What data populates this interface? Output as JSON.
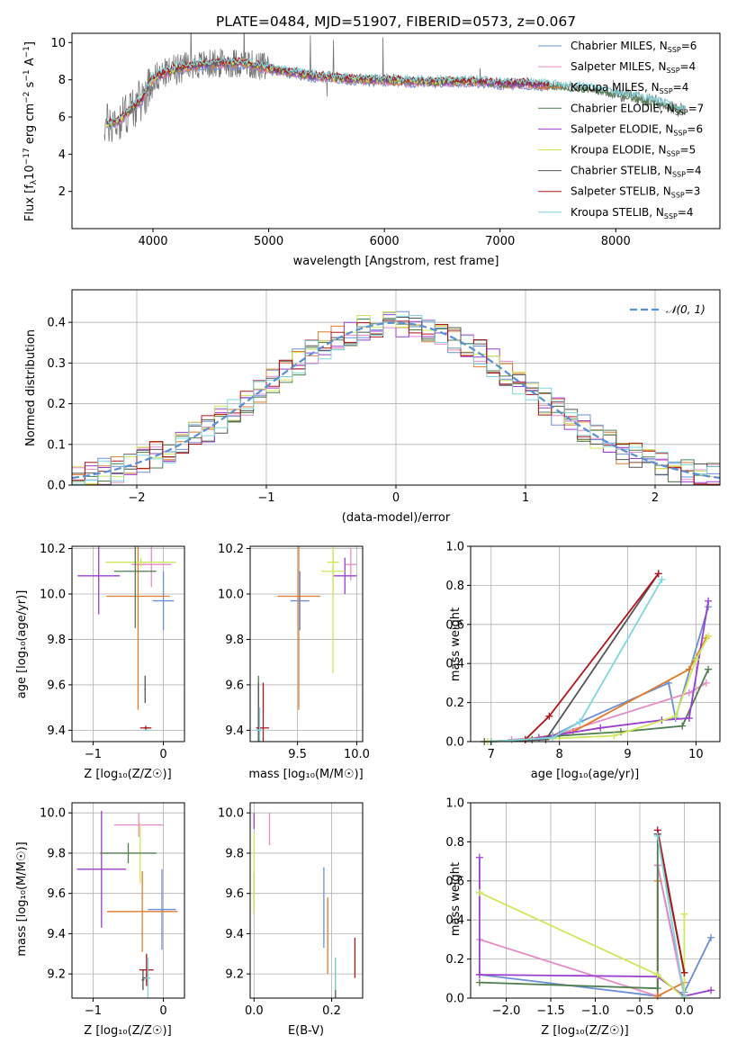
{
  "colors": {
    "series": [
      "#6a8fd8",
      "#e58cc8",
      "#e07b2a",
      "#4e7d4e",
      "#9b3fcf",
      "#cde85a",
      "#555555",
      "#b0161c",
      "#7fd6dc"
    ],
    "gaussian": "#5b8fd6"
  },
  "chart_data": [
    {
      "id": "spectrum",
      "type": "line",
      "title": "PLATE=0484, MJD=51907, FIBERID=0573, z=0.067",
      "xlabel": "wavelength [Angstrom, rest frame]",
      "ylabel": "Flux [f$_\\lambda$10$^{-17}$ erg cm$^{-2}$ s$^{-1}$ A$^{-1}$]",
      "ylabel_parts": [
        "Flux [f",
        "λ",
        "10",
        "−17",
        " erg cm",
        "−2",
        " s",
        "−1",
        " A",
        "−1",
        "]"
      ],
      "xlim": [
        3300,
        8900
      ],
      "ylim": [
        0,
        10.5
      ],
      "xticks": [
        4000,
        5000,
        6000,
        7000,
        8000
      ],
      "yticks": [
        2,
        4,
        6,
        8,
        10
      ],
      "legend_position": "upper right",
      "legend": [
        {
          "base": "Chabrier MILES, N",
          "sub": "SSP",
          "tail": "=6"
        },
        {
          "base": "Salpeter MILES, N",
          "sub": "SSP",
          "tail": "=4"
        },
        {
          "base": "Kroupa MILES, N",
          "sub": "SSP",
          "tail": "=4"
        },
        {
          "base": "Chabrier ELODIE, N",
          "sub": "SSP",
          "tail": "=7"
        },
        {
          "base": "Salpeter ELODIE, N",
          "sub": "SSP",
          "tail": "=6"
        },
        {
          "base": "Kroupa ELODIE, N",
          "sub": "SSP",
          "tail": "=5"
        },
        {
          "base": "Chabrier STELIB, N",
          "sub": "SSP",
          "tail": "=4"
        },
        {
          "base": "Salpeter STELIB, N",
          "sub": "SSP",
          "tail": "=3"
        },
        {
          "base": "Kroupa STELIB, N",
          "sub": "SSP",
          "tail": "=4"
        }
      ],
      "data_trend": {
        "wavelength": [
          3600,
          3700,
          3900,
          4000,
          4200,
          4400,
          4600,
          4800,
          5000,
          5200,
          5400,
          5600,
          5800,
          6000,
          6200,
          6400,
          6600,
          6800,
          7000,
          7200,
          7400,
          7600,
          7800,
          8000,
          8200,
          8400,
          8600
        ],
        "flux": [
          5.6,
          5.8,
          6.9,
          8.1,
          8.6,
          8.8,
          8.9,
          8.9,
          8.6,
          8.4,
          8.2,
          8.1,
          8.0,
          8.0,
          7.9,
          7.9,
          7.9,
          7.9,
          7.8,
          7.8,
          7.7,
          7.6,
          7.5,
          7.2,
          7.0,
          6.7,
          6.3
        ]
      }
    },
    {
      "id": "residuals",
      "type": "histogram",
      "xlabel": "(data-model)/error",
      "ylabel": "Normed distribution",
      "xlim": [
        -2.5,
        2.5
      ],
      "ylim": [
        0,
        0.48
      ],
      "xticks": [
        -2,
        -1,
        0,
        1,
        2
      ],
      "yticks": [
        0.0,
        0.1,
        0.2,
        0.3,
        0.4
      ],
      "grid": true,
      "bin_width": 0.1,
      "bin_start": -2.5,
      "legend_position": "upper right",
      "gaussian_label": "𝒩(0, 1)",
      "gaussian_mean": 0,
      "gaussian_sigma": 1
    },
    {
      "id": "age-vs-Z",
      "type": "errorbar",
      "xlabel": "Z [log₁₀(Z/Z☉)]",
      "ylabel": "age  [log₁₀(age/yr)]",
      "xlim": [
        -1.3,
        0.3
      ],
      "ylim": [
        9.35,
        10.21
      ],
      "xticks": [
        -1,
        0
      ],
      "yticks": [
        9.4,
        9.6,
        9.8,
        10.0,
        10.2
      ],
      "grid": true,
      "points": [
        {
          "x": 0.0,
          "y": 9.97,
          "xerr": 0.15,
          "yerr": 0.13
        },
        {
          "x": -0.17,
          "y": 10.13,
          "xerr": 0.28,
          "yerr": 0.1
        },
        {
          "x": -0.36,
          "y": 9.99,
          "xerr": 0.45,
          "yerr": 0.5
        },
        {
          "x": -0.25,
          "y": 9.41,
          "xerr": 0.08,
          "yerr": 0.01
        },
        {
          "x": -0.92,
          "y": 10.08,
          "xerr": 0.3,
          "yerr": 0.17
        },
        {
          "x": -0.32,
          "y": 10.14,
          "xerr": 0.5,
          "yerr": 0.02
        },
        {
          "x": -0.26,
          "y": 9.58,
          "xerr": 0.01,
          "yerr": 0.06
        },
        {
          "x": -0.24,
          "y": 9.41,
          "xerr": 0.04,
          "yerr": 0.0
        },
        {
          "x": -0.24,
          "y": 9.4,
          "xerr": 0.06,
          "yerr": 0.0
        },
        {
          "x": -0.4,
          "y": 10.1,
          "xerr": 0.3,
          "yerr": 0.25
        }
      ],
      "point_colors": [
        0,
        1,
        2,
        7,
        4,
        5,
        6,
        7,
        8,
        3
      ]
    },
    {
      "id": "age-vs-mass",
      "type": "errorbar",
      "xlabel": "mass [log₁₀(M/M☉)]",
      "ylabel": "",
      "xlim": [
        9.1,
        10.05
      ],
      "ylim": [
        9.35,
        10.21
      ],
      "xticks": [
        9.5,
        10.0
      ],
      "yticks": [
        9.4,
        9.6,
        9.8,
        10.0,
        10.2
      ],
      "grid": true,
      "points": [
        {
          "x": 9.52,
          "y": 9.97,
          "xerr": 0.08,
          "yerr": 0.13
        },
        {
          "x": 9.95,
          "y": 10.13,
          "xerr": 0.05,
          "yerr": 0.07
        },
        {
          "x": 9.51,
          "y": 9.99,
          "xerr": 0.18,
          "yerr": 0.5
        },
        {
          "x": 9.17,
          "y": 9.4,
          "xerr": 0.02,
          "yerr": 0.24
        },
        {
          "x": 9.9,
          "y": 10.08,
          "xerr": 0.1,
          "yerr": 0.08
        },
        {
          "x": 9.8,
          "y": 10.14,
          "xerr": 0.05,
          "yerr": 0.49
        },
        {
          "x": 9.17,
          "y": 9.41,
          "xerr": 0.02,
          "yerr": 0.2
        },
        {
          "x": 9.21,
          "y": 9.41,
          "xerr": 0.05,
          "yerr": 0.2
        },
        {
          "x": 9.18,
          "y": 9.4,
          "xerr": 0.03,
          "yerr": 0.1
        },
        {
          "x": 9.8,
          "y": 10.1,
          "xerr": 0.1,
          "yerr": 0.1
        }
      ],
      "point_colors": [
        0,
        1,
        2,
        3,
        4,
        5,
        6,
        7,
        8,
        5
      ]
    },
    {
      "id": "weight-vs-age",
      "type": "line",
      "xlabel": "age  [log₁₀(age/yr)]",
      "ylabel": "mass weight",
      "xlim": [
        6.7,
        10.35
      ],
      "ylim": [
        0,
        1.0
      ],
      "xticks": [
        7,
        8,
        9,
        10
      ],
      "yticks": [
        0.0,
        0.2,
        0.4,
        0.6,
        0.8,
        1.0
      ],
      "grid": true,
      "series": [
        {
          "x": [
            7.5,
            7.9,
            8.3,
            9.6,
            9.7,
            10.18
          ],
          "y": [
            0.01,
            0.03,
            0.1,
            0.3,
            0.12,
            0.69
          ]
        },
        {
          "x": [
            7.3,
            7.7,
            8.0,
            9.9,
            10.15
          ],
          "y": [
            0.01,
            0.02,
            0.04,
            0.25,
            0.3
          ]
        },
        {
          "x": [
            6.9,
            7.5,
            8.2,
            9.9,
            10.15
          ],
          "y": [
            0.0,
            0.01,
            0.05,
            0.37,
            0.53
          ]
        },
        {
          "x": [
            6.9,
            7.6,
            8.0,
            8.9,
            9.8,
            10.18
          ],
          "y": [
            0.0,
            0.01,
            0.03,
            0.05,
            0.08,
            0.37
          ]
        },
        {
          "x": [
            7.7,
            8.6,
            9.5,
            9.9,
            10.18
          ],
          "y": [
            0.02,
            0.07,
            0.11,
            0.12,
            0.72
          ]
        },
        {
          "x": [
            6.95,
            8.8,
            9.7,
            10.0,
            10.18
          ],
          "y": [
            0.0,
            0.03,
            0.13,
            0.42,
            0.54
          ]
        },
        {
          "x": [
            7.0,
            7.8,
            9.45
          ],
          "y": [
            0.0,
            0.01,
            0.86
          ]
        },
        {
          "x": [
            7.5,
            7.85,
            9.45
          ],
          "y": [
            0.01,
            0.13,
            0.86
          ]
        },
        {
          "x": [
            7.0,
            7.9,
            8.3,
            9.5
          ],
          "y": [
            0.0,
            0.02,
            0.1,
            0.83
          ]
        }
      ]
    },
    {
      "id": "mass-vs-Z",
      "type": "errorbar",
      "xlabel": "Z [log₁₀(Z/Z☉)]",
      "ylabel": "mass [log₁₀(M/M☉)]",
      "xlim": [
        -1.3,
        0.3
      ],
      "ylim": [
        9.08,
        10.05
      ],
      "xticks": [
        -1,
        0
      ],
      "yticks": [
        9.2,
        9.4,
        9.6,
        9.8,
        10.0
      ],
      "grid": true,
      "points": [
        {
          "x": -0.02,
          "y": 9.52,
          "xerr": 0.2,
          "yerr": 0.2
        },
        {
          "x": -0.35,
          "y": 9.94,
          "xerr": 0.35,
          "yerr": 0.06
        },
        {
          "x": -0.3,
          "y": 9.51,
          "xerr": 0.5,
          "yerr": 0.2
        },
        {
          "x": -0.29,
          "y": 9.17,
          "xerr": 0.02,
          "yerr": 0.05
        },
        {
          "x": -0.88,
          "y": 9.72,
          "xerr": 0.35,
          "yerr": 0.29
        },
        {
          "x": -0.33,
          "y": 9.8,
          "xerr": 0.01,
          "yerr": 0.15
        },
        {
          "x": -0.24,
          "y": 9.18,
          "xerr": 0.05,
          "yerr": 0.02
        },
        {
          "x": -0.24,
          "y": 9.22,
          "xerr": 0.1,
          "yerr": 0.08
        },
        {
          "x": -0.22,
          "y": 9.18,
          "xerr": 0.03,
          "yerr": 0.1
        },
        {
          "x": -0.5,
          "y": 9.8,
          "xerr": 0.4,
          "yerr": 0.05
        }
      ],
      "point_colors": [
        0,
        1,
        2,
        6,
        4,
        5,
        6,
        7,
        8,
        3
      ]
    },
    {
      "id": "mass-vs-ebv",
      "type": "errorbar",
      "xlabel": "E(B-V)",
      "ylabel": "",
      "xlim": [
        -0.01,
        0.28
      ],
      "ylim": [
        9.08,
        10.05
      ],
      "xticks": [
        0.0,
        0.2
      ],
      "yticks": [
        9.2,
        9.4,
        9.6,
        9.8,
        10.0
      ],
      "grid": true,
      "points": [
        {
          "x": 0.18,
          "y": 9.53,
          "xerr": 0.0,
          "yerr": 0.2
        },
        {
          "x": 0.04,
          "y": 9.92,
          "xerr": 0.0,
          "yerr": 0.08
        },
        {
          "x": 0.19,
          "y": 9.39,
          "xerr": 0.0,
          "yerr": 0.19
        },
        {
          "x": 0.0,
          "y": 9.6,
          "xerr": 0.0,
          "yerr": 0.1
        },
        {
          "x": 0.0,
          "y": 9.96,
          "xerr": 0.0,
          "yerr": 0.04
        },
        {
          "x": 0.0,
          "y": 9.7,
          "xerr": 0.0,
          "yerr": 0.2
        },
        {
          "x": 0.21,
          "y": 9.15,
          "xerr": 0.0,
          "yerr": 0.13
        },
        {
          "x": 0.26,
          "y": 9.28,
          "xerr": 0.0,
          "yerr": 0.1
        },
        {
          "x": 0.21,
          "y": 9.2,
          "xerr": 0.0,
          "yerr": 0.08
        }
      ],
      "point_colors": [
        0,
        1,
        2,
        3,
        4,
        5,
        6,
        7,
        8
      ]
    },
    {
      "id": "weight-vs-Z",
      "type": "line",
      "xlabel": "Z [log₁₀(Z/Z☉)]",
      "ylabel": "mass weight",
      "xlim": [
        -2.4,
        0.4
      ],
      "ylim": [
        0,
        1.0
      ],
      "xticks": [
        -2.0,
        -1.5,
        -1.0,
        -0.5,
        0.0
      ],
      "yticks": [
        0.0,
        0.2,
        0.4,
        0.6,
        0.8,
        1.0
      ],
      "grid": true,
      "series": [
        {
          "x": [
            -2.3,
            -0.3,
            -0.3,
            0.0,
            0.3
          ],
          "y": [
            0.12,
            0.01,
            0.68,
            0.03,
            0.31
          ]
        },
        {
          "x": [
            -2.3,
            -0.3,
            -0.3,
            0.0
          ],
          "y": [
            0.3,
            0.01,
            0.68,
            0.01
          ]
        },
        {
          "x": [
            -0.3,
            -0.3,
            0.0
          ],
          "y": [
            0.6,
            0.01,
            0.08
          ]
        },
        {
          "x": [
            -2.3,
            -0.3,
            -0.3,
            0.0
          ],
          "y": [
            0.08,
            0.05,
            0.84,
            0.13
          ]
        },
        {
          "x": [
            -2.3,
            -2.3,
            -0.3,
            0.0,
            0.3
          ],
          "y": [
            0.72,
            0.12,
            0.11,
            0.01,
            0.04
          ]
        },
        {
          "x": [
            -2.3,
            -0.3,
            0.0,
            0.0
          ],
          "y": [
            0.54,
            0.12,
            0.0,
            0.43
          ]
        },
        {
          "x": [
            -0.3,
            0.0
          ],
          "y": [
            0.84,
            0.13
          ]
        },
        {
          "x": [
            -0.3,
            0.0
          ],
          "y": [
            0.86,
            0.13
          ]
        },
        {
          "x": [
            -0.3,
            0.0
          ],
          "y": [
            0.83,
            0.01
          ]
        }
      ]
    }
  ]
}
